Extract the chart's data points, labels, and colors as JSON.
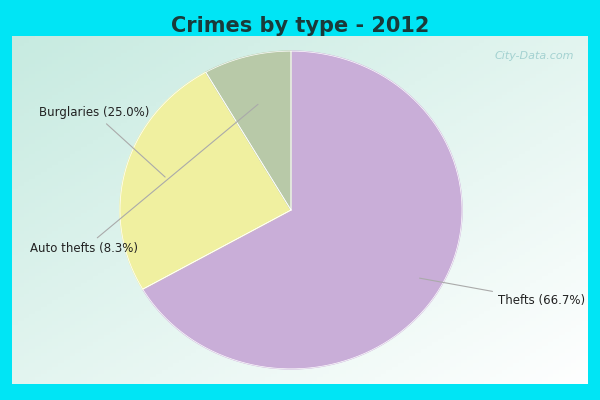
{
  "title": "Crimes by type - 2012",
  "slices": [
    {
      "label": "Thefts",
      "pct": 66.7,
      "color": "#c9aed8"
    },
    {
      "label": "Burglaries",
      "pct": 25.0,
      "color": "#f0f0a0"
    },
    {
      "label": "Auto thefts",
      "pct": 8.3,
      "color": "#b8c9a8"
    }
  ],
  "label_texts": [
    "Thefts (66.7%)",
    "Burglaries (25.0%)",
    "Auto thefts (8.3%)"
  ],
  "title_fontsize": 15,
  "title_fontweight": "bold",
  "title_color": "#1a3a3a",
  "cyan_color": "#00e5f5",
  "inner_bg": "#d0ede0",
  "watermark": "City-Data.com",
  "startangle": 90
}
